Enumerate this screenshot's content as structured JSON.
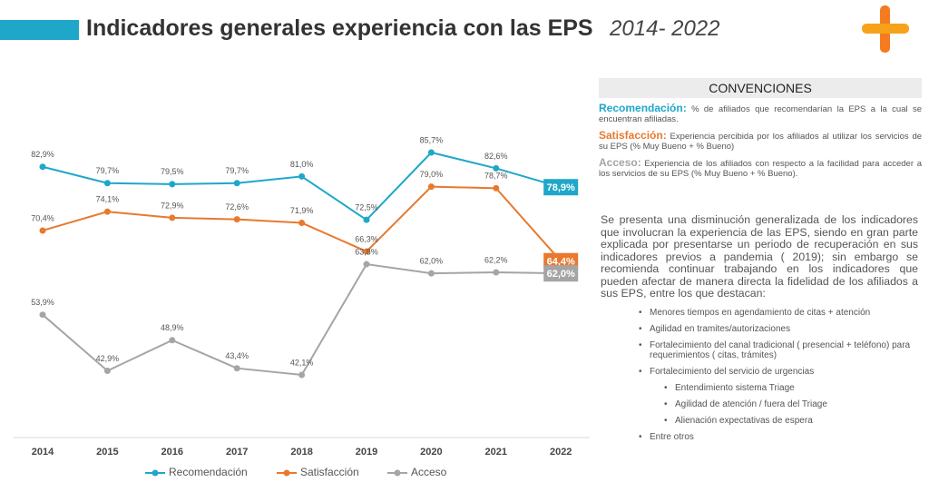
{
  "title": "Indicadores generales experiencia con las EPS",
  "title_years": "2014- 2022",
  "chart_data": {
    "type": "line",
    "categories": [
      "2014",
      "2015",
      "2016",
      "2017",
      "2018",
      "2019",
      "2020",
      "2021",
      "2022"
    ],
    "series": [
      {
        "name": "Recomendación",
        "color": "#1fa7c9",
        "values": [
          82.9,
          79.7,
          79.5,
          79.7,
          81.0,
          72.5,
          85.7,
          82.6,
          78.9
        ],
        "value_labels": [
          "82,9%",
          "79,7%",
          "79,5%",
          "79,7%",
          "81,0%",
          "72,5%",
          "85,7%",
          "82,6%",
          "78,9%"
        ]
      },
      {
        "name": "Satisfacción",
        "color": "#e8792f",
        "values": [
          70.4,
          74.1,
          72.9,
          72.6,
          71.9,
          66.3,
          79.0,
          78.7,
          64.4
        ],
        "value_labels": [
          "70,4%",
          "74,1%",
          "72,9%",
          "72,6%",
          "71,9%",
          "66,3%",
          "79,0%",
          "78,7%",
          "64,4%"
        ]
      },
      {
        "name": "Acceso",
        "color": "#a5a5a5",
        "values": [
          53.9,
          42.9,
          48.9,
          43.4,
          42.1,
          63.8,
          62.0,
          62.2,
          62.0
        ],
        "value_labels": [
          "53,9%",
          "42,9%",
          "48,9%",
          "43,4%",
          "42,1%",
          "63,8%",
          "62,0%",
          "62,2%",
          "62,0%"
        ]
      }
    ]
  },
  "conventions": {
    "title": "CONVENCIONES",
    "items": [
      {
        "term": "Recomendación:",
        "text": "% de afiliados que recomendarían la EPS a la cual se encuentran afiliadas."
      },
      {
        "term": "Satisfacción:",
        "text": "Experiencia percibida por los afiliados al utilizar los servicios de su EPS (% Muy Bueno + % Bueno)"
      },
      {
        "term": "Acceso:",
        "text": "Experiencia de los afiliados con respecto a la facilidad para acceder a los servicios de su EPS (% Muy Bueno + % Bueno)."
      }
    ]
  },
  "summary": "Se presenta una disminución generalizada de los indicadores que involucran la experiencia de las EPS, siendo en gran parte explicada por presentarse un periodo de recuperación en sus indicadores previos a pandemia ( 2019); sin embargo se recomienda continuar trabajando en los indicadores que pueden afectar de manera directa la fidelidad de los afiliados a sus EPS, entre los que destacan:",
  "bullets": [
    "Menores tiempos en agendamiento de citas + atención",
    "Agilidad en tramites/autorizaciones",
    "Fortalecimiento del canal tradicional ( presencial + teléfono) para requerimientos ( citas, trámites)",
    "Fortalecimiento del servicio de urgencias"
  ],
  "sub_bullets": [
    "Entendimiento sistema Triage",
    "Agilidad de atención / fuera del Triage",
    "Alienación expectativas de espera"
  ],
  "closing_bullet": "Entre otros"
}
